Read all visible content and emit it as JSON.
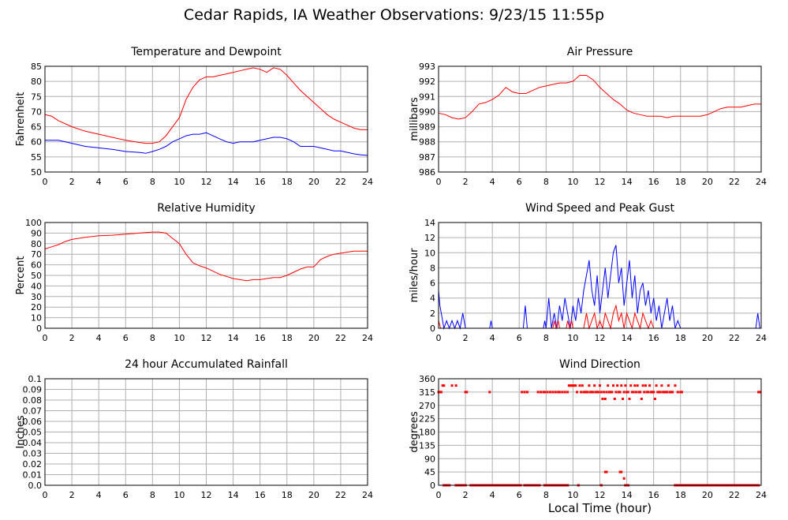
{
  "title": "Cedar Rapids, IA Weather Observations: 9/23/15 11:55p",
  "xlabel_common": "Local Time (hour)",
  "chart_data": [
    {
      "id": "temp",
      "type": "line",
      "title": "Temperature and Dewpoint",
      "ylabel": "Fahrenheit",
      "xlim": [
        0,
        24
      ],
      "ylim": [
        50,
        85
      ],
      "xticks": [
        0,
        2,
        4,
        6,
        8,
        10,
        12,
        14,
        16,
        18,
        20,
        22,
        24
      ],
      "yticks": [
        50,
        55,
        60,
        65,
        70,
        75,
        80,
        85
      ],
      "grid": true,
      "series": [
        {
          "color": "#ff0000",
          "x": [
            0,
            0.5,
            1,
            2,
            3,
            4,
            5,
            6,
            7,
            7.5,
            8,
            8.5,
            9,
            9.5,
            10,
            10.5,
            11,
            11.5,
            12,
            12.5,
            13,
            13.5,
            14,
            14.5,
            15,
            15.5,
            16,
            16.5,
            17,
            17.5,
            18,
            18.5,
            19,
            19.5,
            20,
            20.5,
            21,
            21.5,
            22,
            22.5,
            23,
            23.5,
            24
          ],
          "y": [
            69,
            68.5,
            67,
            65,
            63.5,
            62.5,
            61.5,
            60.5,
            59.8,
            59.5,
            59.5,
            60,
            62,
            65,
            68,
            74,
            78,
            80.5,
            81.5,
            81.5,
            82,
            82.5,
            83,
            83.5,
            84,
            84.5,
            84,
            83,
            84.5,
            84,
            82,
            79.5,
            77,
            75,
            73,
            71,
            69,
            67.5,
            66.5,
            65.5,
            64.5,
            64,
            64
          ]
        },
        {
          "color": "#0000ff",
          "x": [
            0,
            1,
            2,
            3,
            4,
            5,
            6,
            7,
            7.5,
            8,
            8.5,
            9,
            9.5,
            10,
            10.5,
            11,
            11.5,
            12,
            12.5,
            13,
            13.5,
            14,
            14.5,
            15,
            15.5,
            16,
            16.5,
            17,
            17.5,
            18,
            18.5,
            19,
            19.5,
            20,
            20.5,
            21,
            21.5,
            22,
            22.5,
            23,
            23.5,
            24
          ],
          "y": [
            60.5,
            60.5,
            59.5,
            58.5,
            58,
            57.5,
            56.8,
            56.5,
            56.2,
            56.8,
            57.5,
            58.5,
            60,
            61,
            62,
            62.5,
            62.5,
            63,
            62,
            61,
            60,
            59.5,
            60,
            60,
            60,
            60.5,
            61,
            61.5,
            61.5,
            61,
            60,
            58.5,
            58.5,
            58.5,
            58,
            57.5,
            57,
            57,
            56.5,
            56,
            55.7,
            55.5
          ]
        }
      ]
    },
    {
      "id": "press",
      "type": "line",
      "title": "Air Pressure",
      "ylabel": "millibars",
      "xlim": [
        0,
        24
      ],
      "ylim": [
        986,
        993
      ],
      "xticks": [
        0,
        2,
        4,
        6,
        8,
        10,
        12,
        14,
        16,
        18,
        20,
        22,
        24
      ],
      "yticks": [
        986,
        987,
        988,
        989,
        990,
        991,
        992,
        993
      ],
      "grid": true,
      "series": [
        {
          "color": "#ff0000",
          "x": [
            0,
            0.5,
            1,
            1.5,
            2,
            2.5,
            3,
            3.5,
            4,
            4.5,
            5,
            5.5,
            6,
            6.5,
            7,
            7.5,
            8,
            8.5,
            9,
            9.5,
            10,
            10.5,
            11,
            11.5,
            12,
            12.5,
            13,
            13.5,
            14,
            14.5,
            15,
            15.5,
            16,
            16.5,
            17,
            17.5,
            18,
            18.5,
            19,
            19.5,
            20,
            20.5,
            21,
            21.5,
            22,
            22.5,
            23,
            23.5,
            24
          ],
          "y": [
            989.9,
            989.8,
            989.6,
            989.5,
            989.6,
            990,
            990.5,
            990.6,
            990.8,
            991.1,
            991.6,
            991.3,
            991.2,
            991.2,
            991.4,
            991.6,
            991.7,
            991.8,
            991.9,
            991.9,
            992,
            992.4,
            992.4,
            992.1,
            991.6,
            991.2,
            990.8,
            990.5,
            990.1,
            989.9,
            989.8,
            989.7,
            989.7,
            989.7,
            989.6,
            989.7,
            989.7,
            989.7,
            989.7,
            989.7,
            989.8,
            990,
            990.2,
            990.3,
            990.3,
            990.3,
            990.4,
            990.5,
            990.5
          ]
        }
      ]
    },
    {
      "id": "rh",
      "type": "line",
      "title": "Relative Humidity",
      "ylabel": "Percent",
      "xlim": [
        0,
        24
      ],
      "ylim": [
        0,
        100
      ],
      "xticks": [
        0,
        2,
        4,
        6,
        8,
        10,
        12,
        14,
        16,
        18,
        20,
        22,
        24
      ],
      "yticks": [
        0,
        10,
        20,
        30,
        40,
        50,
        60,
        70,
        80,
        90,
        100
      ],
      "grid": true,
      "series": [
        {
          "color": "#ff0000",
          "x": [
            0,
            0.5,
            1,
            1.5,
            2,
            3,
            4,
            5,
            6,
            7,
            8,
            8.5,
            9,
            9.5,
            10,
            10.5,
            11,
            11.5,
            12,
            12.5,
            13,
            13.5,
            14,
            14.5,
            15,
            15.5,
            16,
            16.5,
            17,
            17.5,
            18,
            18.5,
            19,
            19.5,
            20,
            20.5,
            21,
            21.5,
            22,
            22.5,
            23,
            23.5,
            24
          ],
          "y": [
            75,
            77,
            79,
            82,
            84,
            86,
            87.5,
            88,
            89,
            90,
            91,
            91,
            90,
            85,
            80,
            70,
            62,
            59,
            57,
            54,
            51,
            49,
            47,
            46,
            45,
            46,
            46,
            47,
            48,
            48,
            50,
            53,
            56,
            58,
            58,
            65,
            68,
            70,
            71,
            72,
            73,
            73,
            73
          ]
        }
      ]
    },
    {
      "id": "wind",
      "type": "line",
      "title": "Wind Speed and Peak Gust",
      "ylabel": "miles/hour",
      "xlim": [
        0,
        24
      ],
      "ylim": [
        0,
        14
      ],
      "xticks": [
        0,
        2,
        4,
        6,
        8,
        10,
        12,
        14,
        16,
        18,
        20,
        22,
        24
      ],
      "yticks": [
        0,
        2,
        4,
        6,
        8,
        10,
        12,
        14
      ],
      "grid": true,
      "series": [
        {
          "color": "#0000ff",
          "x": [
            0,
            0.1,
            0.3,
            0.4,
            0.6,
            0.8,
            1.0,
            1.2,
            1.4,
            1.6,
            1.8,
            2.0,
            2.2,
            3.8,
            3.9,
            4.0,
            6.3,
            6.45,
            6.6,
            7.8,
            7.9,
            8.0,
            8.2,
            8.4,
            8.6,
            8.8,
            9.0,
            9.2,
            9.4,
            9.6,
            9.8,
            10.0,
            10.2,
            10.4,
            10.6,
            10.8,
            11.0,
            11.2,
            11.4,
            11.6,
            11.8,
            12.0,
            12.2,
            12.4,
            12.6,
            12.8,
            13.0,
            13.2,
            13.4,
            13.6,
            13.8,
            14.0,
            14.2,
            14.4,
            14.6,
            14.8,
            15.0,
            15.2,
            15.4,
            15.6,
            15.8,
            16.0,
            16.2,
            16.4,
            16.6,
            16.8,
            17.0,
            17.2,
            17.4,
            17.6,
            17.8,
            18.0,
            18.2,
            23.6,
            23.75,
            23.9
          ],
          "y": [
            5,
            3,
            1,
            0,
            1,
            0,
            1,
            0,
            1,
            0,
            2,
            0,
            0,
            0,
            1,
            0,
            0,
            3,
            0,
            0,
            1,
            0,
            4,
            0,
            2,
            0,
            3,
            1,
            4,
            2,
            0,
            3,
            1,
            4,
            2,
            5,
            7,
            9,
            5,
            3,
            7,
            2,
            5,
            8,
            4,
            7,
            10,
            11,
            6,
            8,
            3,
            6,
            9,
            4,
            7,
            2,
            5,
            6,
            3,
            5,
            2,
            4,
            1,
            3,
            0,
            2,
            4,
            1,
            3,
            0,
            1,
            0,
            0,
            0,
            2,
            0
          ]
        },
        {
          "color": "#ff0000",
          "x": [
            0,
            0.15,
            0.3,
            8.5,
            8.6,
            8.75,
            8.9,
            9.0,
            9.5,
            9.6,
            9.75,
            9.9,
            10.0,
            10.8,
            10.9,
            11.0,
            11.2,
            11.4,
            11.6,
            11.8,
            12.0,
            12.2,
            12.4,
            12.6,
            12.8,
            13.0,
            13.2,
            13.4,
            13.6,
            13.8,
            14.0,
            14.2,
            14.4,
            14.6,
            14.8,
            15.0,
            15.2,
            15.4,
            15.6,
            15.8,
            16.0
          ],
          "y": [
            1,
            0,
            0,
            0,
            1,
            0,
            1,
            0,
            0,
            1,
            0,
            1,
            0,
            0,
            1,
            2,
            0,
            1,
            2,
            0,
            1,
            0,
            2,
            1,
            0,
            2,
            3,
            1,
            2,
            0,
            2,
            1,
            0,
            2,
            1,
            0,
            2,
            1,
            0,
            1,
            0
          ]
        }
      ]
    },
    {
      "id": "rain",
      "type": "line",
      "title": "24 hour Accumulated Rainfall",
      "ylabel": "Inches",
      "xlim": [
        0,
        24
      ],
      "ylim": [
        0,
        0.1
      ],
      "xticks": [
        0,
        2,
        4,
        6,
        8,
        10,
        12,
        14,
        16,
        18,
        20,
        22,
        24
      ],
      "yticks": [
        "0.0",
        "0.01",
        "0.02",
        "0.03",
        "0.04",
        "0.05",
        "0.06",
        "0.07",
        "0.08",
        "0.09",
        "0.1"
      ],
      "grid": true,
      "series": [
        {
          "color": "#ff0000",
          "x": [
            0,
            24
          ],
          "y": [
            0,
            0
          ]
        }
      ]
    },
    {
      "id": "dir",
      "type": "scatter",
      "title": "Wind Direction",
      "ylabel": "degrees",
      "xlabel": "Local Time (hour)",
      "xlim": [
        0,
        24
      ],
      "ylim": [
        0,
        360
      ],
      "xticks": [
        0,
        2,
        4,
        6,
        8,
        10,
        12,
        14,
        16,
        18,
        20,
        22,
        24
      ],
      "yticks": [
        0,
        45,
        90,
        135,
        180,
        225,
        270,
        315,
        360
      ],
      "grid": true,
      "zero_ranges": [
        [
          0.3,
          0.9
        ],
        [
          1.2,
          2.1
        ],
        [
          2.3,
          6.2
        ],
        [
          6.3,
          7.6
        ],
        [
          7.8,
          9.7
        ],
        [
          10.3,
          10.5
        ],
        [
          12.0,
          12.2
        ],
        [
          13.8,
          14.2
        ],
        [
          17.5,
          23.9
        ]
      ],
      "points": {
        "color": "#ff0000",
        "x": [
          0,
          0.1,
          0.2,
          0.3,
          0.4,
          1.0,
          1.3,
          2.0,
          2.1,
          3.8,
          6.2,
          6.4,
          6.6,
          7.4,
          7.6,
          7.8,
          7.9,
          8.1,
          8.3,
          8.5,
          8.7,
          8.9,
          9.0,
          9.2,
          9.4,
          9.6,
          9.7,
          9.8,
          9.9,
          10.0,
          10.1,
          10.2,
          10.3,
          10.5,
          10.6,
          10.7,
          10.8,
          10.9,
          11.0,
          11.1,
          11.2,
          11.3,
          11.4,
          11.5,
          11.6,
          11.7,
          11.8,
          11.9,
          12.0,
          12.1,
          12.2,
          12.3,
          12.4,
          12.5,
          12.6,
          12.7,
          12.8,
          12.9,
          13.0,
          13.1,
          13.2,
          13.3,
          13.4,
          13.5,
          13.6,
          13.7,
          13.8,
          13.9,
          14.0,
          14.1,
          14.2,
          14.3,
          14.4,
          14.5,
          14.6,
          14.7,
          14.8,
          14.9,
          15.0,
          15.1,
          15.2,
          15.3,
          15.4,
          15.5,
          15.6,
          15.7,
          15.8,
          15.9,
          16.0,
          16.1,
          16.2,
          16.3,
          16.4,
          16.5,
          16.6,
          16.7,
          16.8,
          16.9,
          17.0,
          17.1,
          17.2,
          17.3,
          17.4,
          17.6,
          17.8,
          18.0,
          18.1,
          23.8,
          23.9,
          12.4,
          12.5,
          13.5,
          13.6,
          13.8,
          15.9
        ],
        "y": [
          315,
          315,
          315,
          337,
          337,
          337,
          337,
          315,
          315,
          315,
          315,
          315,
          315,
          315,
          315,
          315,
          315,
          315,
          315,
          315,
          315,
          315,
          315,
          315,
          315,
          315,
          337,
          337,
          337,
          337,
          337,
          337,
          315,
          337,
          315,
          337,
          315,
          315,
          315,
          315,
          337,
          315,
          315,
          315,
          337,
          315,
          315,
          315,
          337,
          315,
          292,
          315,
          292,
          315,
          337,
          315,
          315,
          315,
          337,
          292,
          315,
          337,
          315,
          315,
          337,
          292,
          315,
          337,
          315,
          315,
          292,
          337,
          315,
          315,
          337,
          315,
          337,
          315,
          315,
          292,
          337,
          315,
          337,
          315,
          315,
          337,
          315,
          315,
          315,
          292,
          337,
          315,
          315,
          315,
          337,
          315,
          315,
          315,
          315,
          337,
          315,
          315,
          315,
          337,
          315,
          315,
          315,
          315,
          315,
          45,
          45,
          45,
          45,
          23,
          315
        ]
      }
    }
  ]
}
